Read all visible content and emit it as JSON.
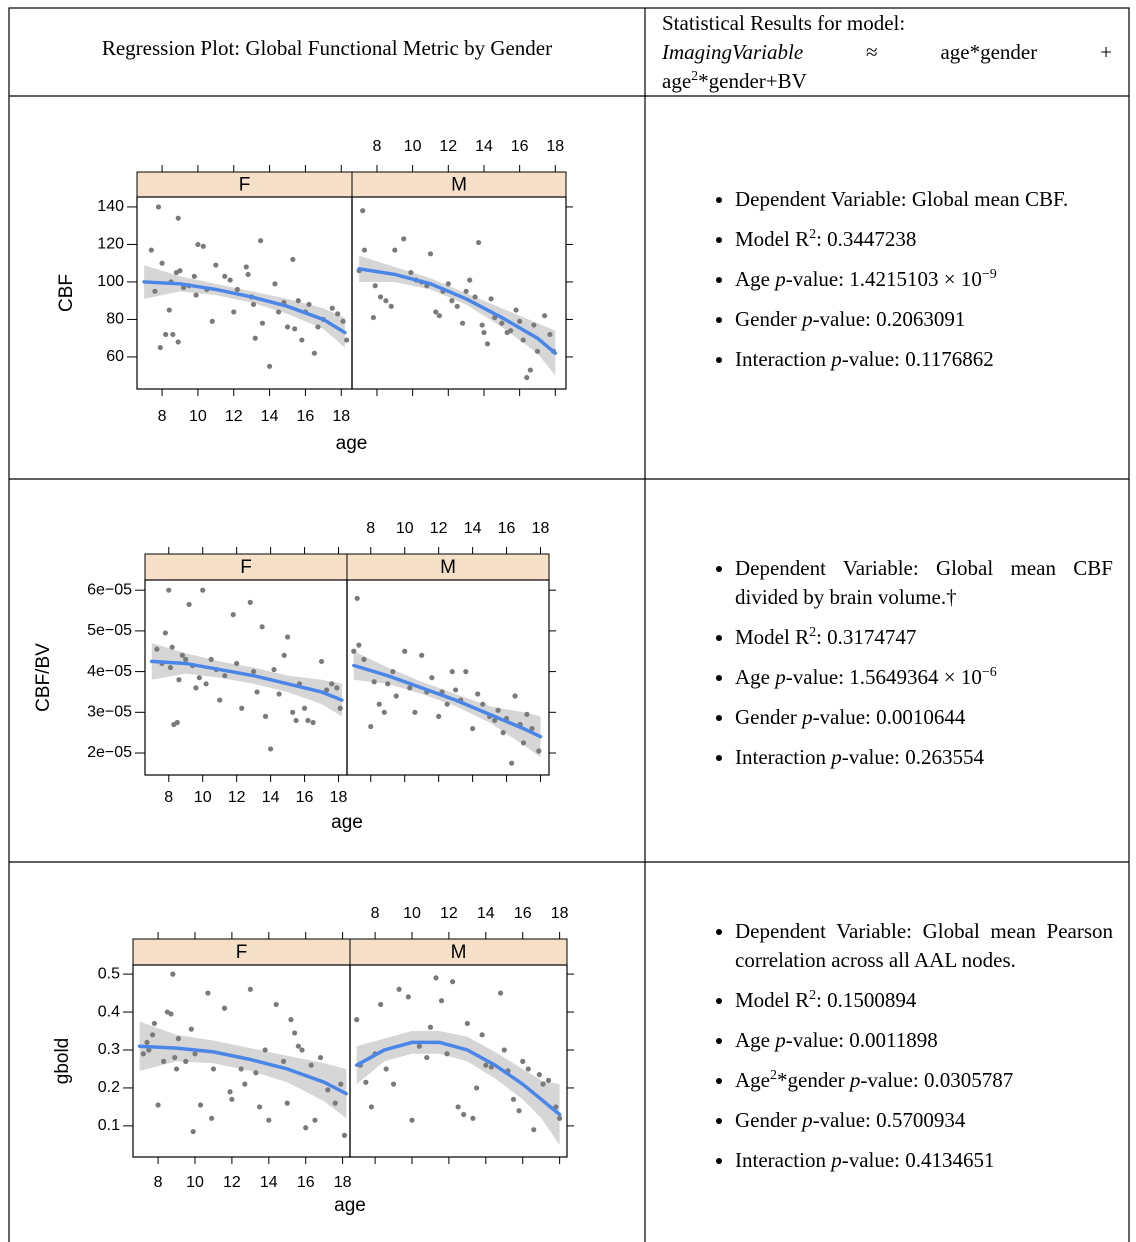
{
  "header": {
    "plot_title": "Regression Plot: Global Functional Metric by Gender",
    "model_title": "Statistical Results for model:",
    "model": [
      {
        "text": "ImagingVariable",
        "style": "italic"
      },
      {
        "text": "≈"
      },
      {
        "text": "age*gender"
      },
      {
        "text": "+"
      }
    ],
    "model_cont": [
      {
        "text": "age"
      },
      {
        "text": "2",
        "style": "sup"
      },
      {
        "text": "*gender+BV"
      }
    ]
  },
  "chart_data": [
    {
      "type": "scatter",
      "ylabel": "CBF",
      "xlabel": "age",
      "xlim": [
        6.6,
        18.6
      ],
      "xticks": [
        8,
        10,
        12,
        14,
        16,
        18
      ],
      "ylim": [
        42.9,
        145.3
      ],
      "yticks": [
        60,
        80,
        100,
        120,
        140
      ],
      "strip_color": "#f6e0c8",
      "point_color": "#7a7a7a",
      "fit_color": "#4a86e8",
      "band_color": "#cfcfcf",
      "panels": [
        {
          "name": "F",
          "x": [
            7.4,
            7.6,
            7.8,
            7.9,
            8.0,
            8.2,
            8.4,
            8.5,
            8.6,
            8.8,
            8.9,
            8.9,
            9.0,
            9.2,
            9.5,
            9.8,
            9.9,
            10.0,
            10.3,
            10.5,
            10.8,
            11.0,
            11.5,
            11.8,
            12.0,
            12.2,
            12.7,
            12.8,
            13.0,
            13.1,
            13.2,
            13.5,
            13.6,
            14.0,
            14.3,
            14.5,
            14.8,
            15.0,
            15.3,
            15.4,
            15.6,
            15.8,
            16.0,
            16.2,
            16.5,
            16.7,
            17.0,
            17.5,
            17.8,
            18.1,
            18.3
          ],
          "values": [
            117,
            95,
            140,
            65,
            110,
            72,
            85,
            100,
            72,
            105,
            134,
            68,
            106,
            97,
            98,
            103,
            93,
            120,
            119,
            96,
            79,
            109,
            103,
            101,
            84,
            96,
            108,
            104,
            92,
            88,
            70,
            122,
            78,
            55,
            99,
            84,
            89,
            76,
            112,
            75,
            90,
            69,
            84,
            88,
            62,
            76,
            80,
            86,
            83,
            79,
            69
          ],
          "fit_x": [
            7,
            9,
            11,
            13,
            15,
            17,
            18.2
          ],
          "fit": [
            100,
            99,
            96,
            92,
            87,
            80,
            73
          ],
          "band_lower": [
            91,
            95,
            93,
            89,
            83,
            75,
            65
          ],
          "band_upper": [
            109,
            103,
            99,
            95,
            91,
            86,
            81
          ]
        },
        {
          "name": "M",
          "x": [
            7.0,
            7.2,
            7.3,
            7.8,
            7.9,
            8.2,
            8.5,
            8.8,
            9.0,
            9.5,
            9.9,
            10.2,
            10.5,
            10.8,
            11.0,
            11.3,
            11.5,
            11.7,
            12.0,
            12.2,
            12.5,
            12.8,
            13.0,
            13.2,
            13.5,
            13.7,
            13.9,
            14.0,
            14.2,
            14.4,
            14.6,
            15.0,
            15.3,
            15.5,
            15.8,
            16.0,
            16.2,
            16.4,
            16.6,
            16.8,
            17.0,
            17.4,
            17.7,
            17.9
          ],
          "values": [
            106,
            138,
            117,
            81,
            98,
            92,
            90,
            87,
            117,
            123,
            105,
            101,
            100,
            98,
            115,
            84,
            82,
            95,
            99,
            90,
            87,
            78,
            95,
            101,
            92,
            121,
            77,
            73,
            67,
            91,
            81,
            78,
            73,
            74,
            85,
            79,
            69,
            49,
            53,
            77,
            63,
            82,
            72,
            63
          ],
          "fit_x": [
            7,
            9,
            11,
            13,
            15,
            17,
            18
          ],
          "fit": [
            107,
            104,
            99,
            91,
            81,
            70,
            62
          ],
          "band_lower": [
            100,
            100,
            96,
            88,
            76,
            62,
            50
          ],
          "band_upper": [
            114,
            108,
            102,
            94,
            86,
            78,
            74
          ]
        }
      ]
    },
    {
      "type": "scatter",
      "ylabel": "CBF/BV",
      "xlabel": "age",
      "xlim": [
        6.6,
        18.5
      ],
      "xticks": [
        8,
        10,
        12,
        14,
        16,
        18
      ],
      "ylim": [
        1.46e-05,
        6.25e-05
      ],
      "yticks": [
        {
          "value": 2e-05,
          "label": "2e−05"
        },
        {
          "value": 3e-05,
          "label": "3e−05"
        },
        {
          "value": 4e-05,
          "label": "4e−05"
        },
        {
          "value": 5e-05,
          "label": "5e−05"
        },
        {
          "value": 6e-05,
          "label": "6e−05"
        }
      ],
      "strip_color": "#f6e0c8",
      "point_color": "#7a7a7a",
      "fit_color": "#4a86e8",
      "band_color": "#cfcfcf",
      "panels": [
        {
          "name": "F",
          "x": [
            7.3,
            7.6,
            7.8,
            8.0,
            8.1,
            8.2,
            8.3,
            8.5,
            8.6,
            8.8,
            9.0,
            9.2,
            9.4,
            9.6,
            9.8,
            10.0,
            10.2,
            10.5,
            10.8,
            11.0,
            11.3,
            11.8,
            12.0,
            12.3,
            12.8,
            13.0,
            13.2,
            13.5,
            13.7,
            14.0,
            14.2,
            14.5,
            14.8,
            15.0,
            15.3,
            15.5,
            15.7,
            16.0,
            16.2,
            16.5,
            17.0,
            17.3,
            17.6,
            17.9,
            18.1
          ],
          "values": [
            4.55e-05,
            4.2e-05,
            4.95e-05,
            6e-05,
            4.1e-05,
            4.6e-05,
            2.7e-05,
            2.75e-05,
            3.8e-05,
            4.4e-05,
            4.3e-05,
            5.65e-05,
            4.15e-05,
            3.6e-05,
            3.85e-05,
            6e-05,
            3.7e-05,
            4.3e-05,
            4.05e-05,
            3.3e-05,
            3.9e-05,
            5.4e-05,
            4.2e-05,
            3.1e-05,
            5.7e-05,
            4e-05,
            3.5e-05,
            5.1e-05,
            2.9e-05,
            2.1e-05,
            4.05e-05,
            3.45e-05,
            4.4e-05,
            4.85e-05,
            3e-05,
            2.8e-05,
            3.7e-05,
            3.1e-05,
            2.8e-05,
            2.75e-05,
            4.25e-05,
            3.55e-05,
            3.7e-05,
            3.6e-05,
            3.1e-05
          ],
          "fit_x": [
            7,
            9,
            11,
            13,
            15,
            17,
            18.2
          ],
          "fit": [
            4.25e-05,
            4.2e-05,
            4.05e-05,
            3.9e-05,
            3.7e-05,
            3.5e-05,
            3.3e-05
          ],
          "band_lower": [
            3.8e-05,
            3.95e-05,
            3.85e-05,
            3.7e-05,
            3.5e-05,
            3.2e-05,
            2.9e-05
          ],
          "band_upper": [
            4.7e-05,
            4.45e-05,
            4.25e-05,
            4.1e-05,
            3.9e-05,
            3.8e-05,
            3.7e-05
          ]
        },
        {
          "name": "M",
          "x": [
            7.0,
            7.2,
            7.3,
            7.6,
            8.0,
            8.2,
            8.5,
            8.8,
            9.0,
            9.3,
            9.5,
            10.0,
            10.3,
            10.6,
            11.0,
            11.3,
            11.6,
            12.0,
            12.2,
            12.5,
            12.8,
            13.0,
            13.3,
            13.6,
            14.0,
            14.3,
            14.6,
            15.0,
            15.3,
            15.5,
            15.8,
            16.0,
            16.3,
            16.5,
            16.8,
            17.0,
            17.2,
            17.5,
            17.9
          ],
          "values": [
            4.5e-05,
            5.8e-05,
            4.65e-05,
            4.3e-05,
            2.65e-05,
            3.75e-05,
            3.2e-05,
            3e-05,
            3.7e-05,
            4e-05,
            3.4e-05,
            4.5e-05,
            3.6e-05,
            3e-05,
            4.4e-05,
            3.5e-05,
            3.85e-05,
            2.9e-05,
            3.5e-05,
            3.2e-05,
            4e-05,
            3.55e-05,
            3.3e-05,
            4e-05,
            2.6e-05,
            3.45e-05,
            3.2e-05,
            2.9e-05,
            2.8e-05,
            3.05e-05,
            2.5e-05,
            2.85e-05,
            1.75e-05,
            3.4e-05,
            2.7e-05,
            2.25e-05,
            2.95e-05,
            2.6e-05,
            2.05e-05
          ],
          "fit_x": [
            7,
            9,
            11,
            13,
            15,
            17,
            18
          ],
          "fit": [
            4.15e-05,
            3.9e-05,
            3.6e-05,
            3.3e-05,
            2.95e-05,
            2.6e-05,
            2.4e-05
          ],
          "band_lower": [
            3.8e-05,
            3.7e-05,
            3.45e-05,
            3.15e-05,
            2.75e-05,
            2.2e-05,
            1.9e-05
          ],
          "band_upper": [
            4.5e-05,
            4.1e-05,
            3.75e-05,
            3.45e-05,
            3.15e-05,
            3e-05,
            2.9e-05
          ]
        }
      ]
    },
    {
      "type": "scatter",
      "ylabel": "gbold",
      "xlabel": "age",
      "xlim": [
        6.64,
        18.4
      ],
      "xticks": [
        8,
        10,
        12,
        14,
        16,
        18
      ],
      "ylim": [
        0.018,
        0.524
      ],
      "yticks": [
        0.1,
        0.2,
        0.3,
        0.4,
        0.5
      ],
      "strip_color": "#f6e0c8",
      "point_color": "#7a7a7a",
      "fit_color": "#4a86e8",
      "band_color": "#cfcfcf",
      "panels": [
        {
          "name": "F",
          "x": [
            7.2,
            7.4,
            7.5,
            7.7,
            7.8,
            8.0,
            8.3,
            8.5,
            8.7,
            8.8,
            8.9,
            9.0,
            9.1,
            9.5,
            9.8,
            9.9,
            10.0,
            10.3,
            10.7,
            10.9,
            11.0,
            11.6,
            11.9,
            12.0,
            12.5,
            12.7,
            13.0,
            13.3,
            13.5,
            13.8,
            14.0,
            14.4,
            14.8,
            15.0,
            15.2,
            15.4,
            15.6,
            15.8,
            16.0,
            16.3,
            16.5,
            16.8,
            17.2,
            17.6,
            17.9,
            18.1
          ],
          "values": [
            0.29,
            0.32,
            0.3,
            0.34,
            0.37,
            0.155,
            0.27,
            0.4,
            0.395,
            0.5,
            0.28,
            0.25,
            0.33,
            0.27,
            0.355,
            0.085,
            0.29,
            0.155,
            0.45,
            0.12,
            0.25,
            0.41,
            0.19,
            0.17,
            0.25,
            0.21,
            0.46,
            0.24,
            0.15,
            0.3,
            0.115,
            0.42,
            0.27,
            0.16,
            0.38,
            0.345,
            0.31,
            0.3,
            0.095,
            0.26,
            0.115,
            0.28,
            0.195,
            0.16,
            0.21,
            0.075
          ],
          "fit_x": [
            7,
            9,
            11,
            13,
            15,
            17,
            18.2
          ],
          "fit": [
            0.31,
            0.305,
            0.295,
            0.275,
            0.25,
            0.215,
            0.185
          ],
          "band_lower": [
            0.245,
            0.27,
            0.265,
            0.245,
            0.215,
            0.165,
            0.12
          ],
          "band_upper": [
            0.375,
            0.34,
            0.325,
            0.305,
            0.285,
            0.265,
            0.25
          ]
        },
        {
          "name": "M",
          "x": [
            7.0,
            7.2,
            7.5,
            7.8,
            8.0,
            8.3,
            8.6,
            9.0,
            9.3,
            9.8,
            10.0,
            10.4,
            10.8,
            11.0,
            11.3,
            11.6,
            11.9,
            12.2,
            12.5,
            12.8,
            13.0,
            13.3,
            13.5,
            13.8,
            14.0,
            14.3,
            14.8,
            15.0,
            15.2,
            15.5,
            15.8,
            16.0,
            16.3,
            16.6,
            16.9,
            17.1,
            17.4,
            17.8,
            18.0
          ],
          "values": [
            0.38,
            0.26,
            0.215,
            0.15,
            0.29,
            0.42,
            0.25,
            0.21,
            0.46,
            0.44,
            0.115,
            0.31,
            0.28,
            0.36,
            0.49,
            0.43,
            0.29,
            0.48,
            0.15,
            0.13,
            0.37,
            0.12,
            0.2,
            0.34,
            0.26,
            0.255,
            0.45,
            0.3,
            0.245,
            0.17,
            0.14,
            0.27,
            0.25,
            0.09,
            0.235,
            0.21,
            0.22,
            0.15,
            0.12
          ],
          "fit_x": [
            7,
            8.5,
            10,
            11.5,
            13,
            14.5,
            16,
            17,
            18
          ],
          "fit": [
            0.26,
            0.3,
            0.32,
            0.32,
            0.3,
            0.26,
            0.21,
            0.17,
            0.13
          ],
          "band_lower": [
            0.21,
            0.27,
            0.29,
            0.29,
            0.27,
            0.225,
            0.17,
            0.12,
            0.05
          ],
          "band_upper": [
            0.31,
            0.33,
            0.35,
            0.35,
            0.335,
            0.295,
            0.25,
            0.22,
            0.21
          ]
        }
      ]
    }
  ],
  "results": [
    [
      [
        {
          "text": "Dependent Variable: Global mean CBF."
        }
      ],
      [
        {
          "text": "Model R"
        },
        {
          "text": "2",
          "style": "sup"
        },
        {
          "text": ": 0.3447238"
        }
      ],
      [
        {
          "text": "Age "
        },
        {
          "text": "p",
          "style": "italic"
        },
        {
          "text": "-value: 1.4215103 × 10"
        },
        {
          "text": "−9",
          "style": "sup"
        }
      ],
      [
        {
          "text": "Gender "
        },
        {
          "text": "p",
          "style": "italic"
        },
        {
          "text": "-value: 0.2063091"
        }
      ],
      [
        {
          "text": "Interaction "
        },
        {
          "text": "p",
          "style": "italic"
        },
        {
          "text": "-value: 0.1176862"
        }
      ]
    ],
    [
      [
        {
          "text": "Dependent Variable: Global mean CBF divided by brain volume.†"
        }
      ],
      [
        {
          "text": "Model R"
        },
        {
          "text": "2",
          "style": "sup"
        },
        {
          "text": ": 0.3174747"
        }
      ],
      [
        {
          "text": "Age "
        },
        {
          "text": "p",
          "style": "italic"
        },
        {
          "text": "-value: 1.5649364 × 10"
        },
        {
          "text": "−6",
          "style": "sup"
        }
      ],
      [
        {
          "text": "Gender "
        },
        {
          "text": "p",
          "style": "italic"
        },
        {
          "text": "-value: 0.0010644"
        }
      ],
      [
        {
          "text": "Interaction "
        },
        {
          "text": "p",
          "style": "italic"
        },
        {
          "text": "-value: 0.263554"
        }
      ]
    ],
    [
      [
        {
          "text": "Dependent Variable: Global mean Pearson correlation across all AAL nodes."
        }
      ],
      [
        {
          "text": "Model R"
        },
        {
          "text": "2",
          "style": "sup"
        },
        {
          "text": ": 0.1500894"
        }
      ],
      [
        {
          "text": "Age "
        },
        {
          "text": "p",
          "style": "italic"
        },
        {
          "text": "-value: 0.0011898"
        }
      ],
      [
        {
          "text": "Age"
        },
        {
          "text": "2",
          "style": "sup"
        },
        {
          "text": "*gender "
        },
        {
          "text": "p",
          "style": "italic"
        },
        {
          "text": "-value: 0.0305787"
        }
      ],
      [
        {
          "text": "Gender "
        },
        {
          "text": "p",
          "style": "italic"
        },
        {
          "text": "-value: 0.5700934"
        }
      ],
      [
        {
          "text": "Interaction "
        },
        {
          "text": "p",
          "style": "italic"
        },
        {
          "text": "-value: 0.4134651"
        }
      ]
    ]
  ]
}
